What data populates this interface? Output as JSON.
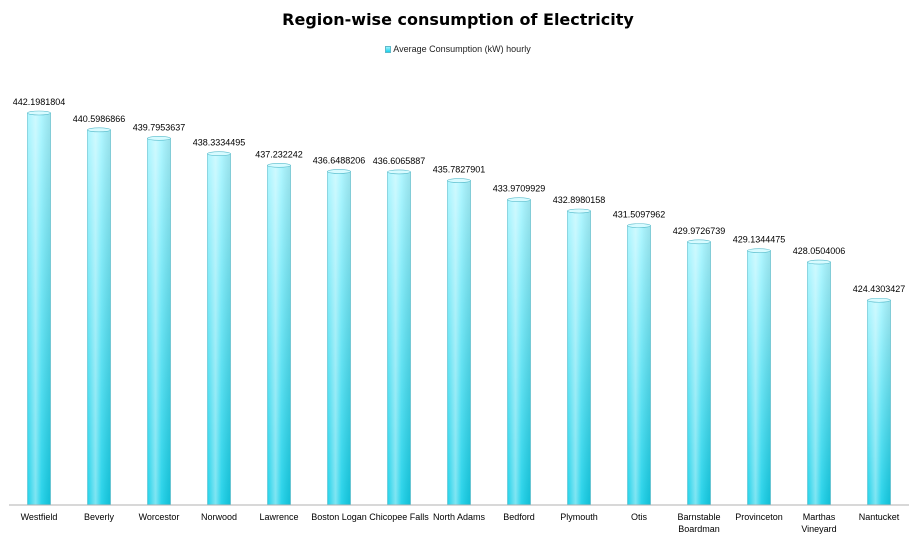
{
  "chart_data": {
    "type": "bar",
    "title": "Region-wise consumption of Electricity",
    "legend": {
      "position": "top",
      "entries": [
        "Average Consumption (kW) hourly"
      ]
    },
    "categories": [
      [
        "Westfield"
      ],
      [
        "Beverly"
      ],
      [
        "Worcestor"
      ],
      [
        "Norwood"
      ],
      [
        "Lawrence"
      ],
      [
        "Boston Logan"
      ],
      [
        "Chicopee Falls"
      ],
      [
        "North Adams"
      ],
      [
        "Bedford"
      ],
      [
        "Plymouth"
      ],
      [
        "Otis"
      ],
      [
        "Barnstable",
        "Boardman"
      ],
      [
        "Provinceton"
      ],
      [
        "Marthas",
        "Vineyard"
      ],
      [
        "Nantucket"
      ]
    ],
    "series": [
      {
        "name": "Average Consumption (kW) hourly",
        "values": [
          442.1981804,
          440.5986866,
          439.7953637,
          438.3334495,
          437.232242,
          436.6488206,
          436.6065887,
          435.7827901,
          433.9709929,
          432.8980158,
          431.5097962,
          429.9726739,
          429.1344475,
          428.0504006,
          424.4303427
        ],
        "labels": [
          "442.1981804",
          "440.5986866",
          "439.7953637",
          "438.3334495",
          "437.232242",
          "436.6488206",
          "436.6065887",
          "435.7827901",
          "433.9709929",
          "432.8980158",
          "431.5097962",
          "429.9726739",
          "429.1344475",
          "428.0504006",
          "424.4303427"
        ]
      }
    ],
    "ylim": [
      405,
      442.1981804
    ],
    "grid": false,
    "colors": {
      "bar_top": "#a8f5ff",
      "bar_bottom": "#14cfe8",
      "bar_edge": "#58bccc",
      "axis": "#b0b0b0"
    }
  }
}
